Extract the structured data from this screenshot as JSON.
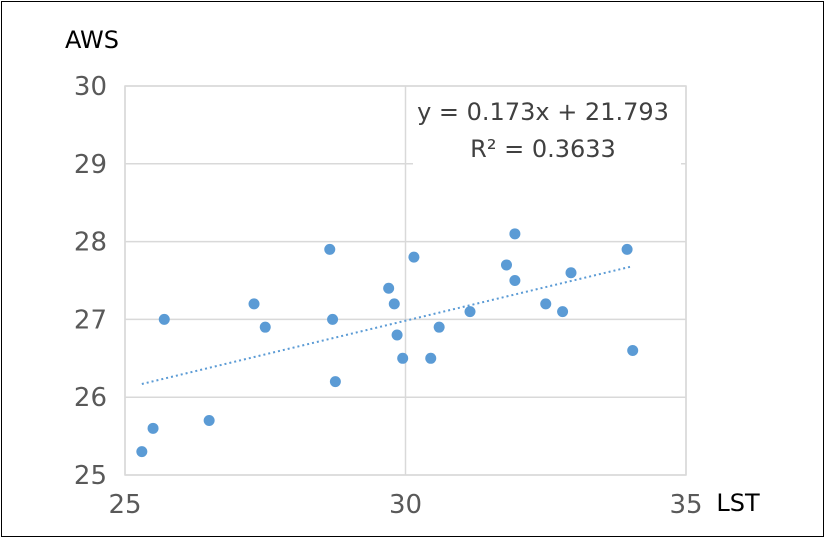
{
  "chart_data": {
    "type": "scatter",
    "title": "",
    "xlabel": "LST",
    "ylabel": "AWS",
    "xlim": [
      25,
      35
    ],
    "ylim": [
      25,
      30
    ],
    "xticks": [
      25,
      30,
      35
    ],
    "yticks": [
      25,
      26,
      27,
      28,
      29,
      30
    ],
    "grid": true,
    "legend": "none",
    "colors": {
      "points": "#5B9BD5",
      "trendline": "#5B9BD5",
      "grid": "#D9D9D9"
    },
    "series": [
      {
        "points": [
          [
            25.3,
            25.3
          ],
          [
            25.5,
            25.6
          ],
          [
            25.7,
            27.0
          ],
          [
            26.5,
            25.7
          ],
          [
            27.3,
            27.2
          ],
          [
            27.5,
            26.9
          ],
          [
            28.65,
            27.9
          ],
          [
            28.7,
            27.0
          ],
          [
            28.75,
            26.2
          ],
          [
            29.7,
            27.4
          ],
          [
            29.8,
            27.2
          ],
          [
            29.85,
            26.8
          ],
          [
            29.95,
            26.5
          ],
          [
            30.15,
            27.8
          ],
          [
            30.45,
            26.5
          ],
          [
            30.6,
            26.9
          ],
          [
            31.15,
            27.1
          ],
          [
            31.8,
            27.7
          ],
          [
            31.95,
            28.1
          ],
          [
            31.95,
            27.5
          ],
          [
            32.5,
            27.2
          ],
          [
            32.8,
            27.1
          ],
          [
            32.95,
            27.6
          ],
          [
            33.95,
            27.9
          ],
          [
            34.05,
            26.6
          ]
        ]
      }
    ],
    "trendline": {
      "type": "linear",
      "slope": 0.173,
      "intercept": 21.793,
      "x_range": [
        25.3,
        34.05
      ],
      "equation_label": "y = 0.173x + 21.793",
      "r2_label": "R² = 0.3633"
    }
  }
}
